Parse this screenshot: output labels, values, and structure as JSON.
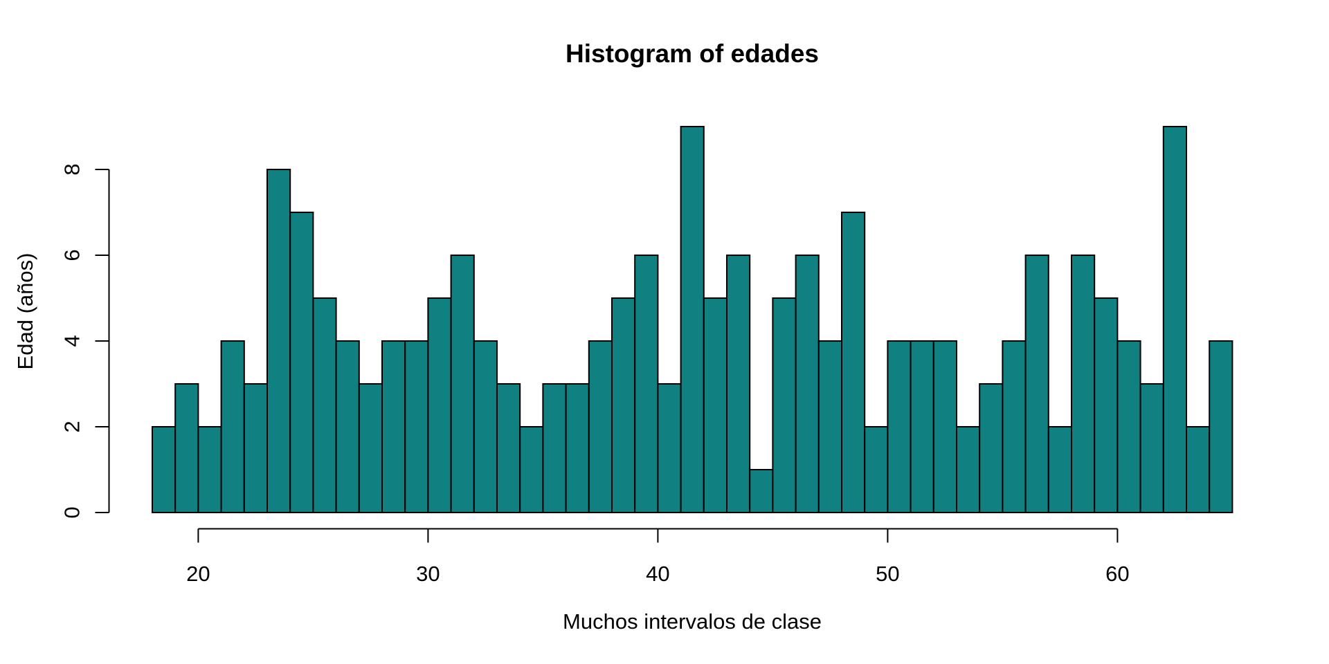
{
  "window": {
    "background": "#ffffff"
  },
  "chart_data": {
    "type": "bar",
    "subtype": "histogram",
    "title": "Histogram of edades",
    "xlabel": "Muchos intervalos de clase",
    "ylabel": "Edad (años)",
    "bins": {
      "start": 18,
      "end": 65,
      "bin_width": 1
    },
    "counts": [
      2,
      3,
      2,
      4,
      3,
      8,
      7,
      5,
      4,
      3,
      4,
      4,
      5,
      6,
      4,
      3,
      2,
      3,
      3,
      4,
      5,
      6,
      3,
      9,
      5,
      6,
      1,
      5,
      6,
      4,
      7,
      2,
      4,
      4,
      4,
      2,
      3,
      4,
      6,
      2,
      6,
      5,
      4,
      3,
      9,
      2,
      4
    ],
    "x_ticks": [
      20,
      30,
      40,
      50,
      60
    ],
    "y_ticks": [
      0,
      2,
      4,
      6,
      8
    ],
    "xlim": [
      18,
      65
    ],
    "ylim": [
      0,
      9
    ],
    "grid": "off",
    "legend": "none",
    "colors": {
      "bar_fill": "#118080",
      "bar_stroke": "#000000",
      "axis": "#000000",
      "text": "#000000"
    }
  }
}
